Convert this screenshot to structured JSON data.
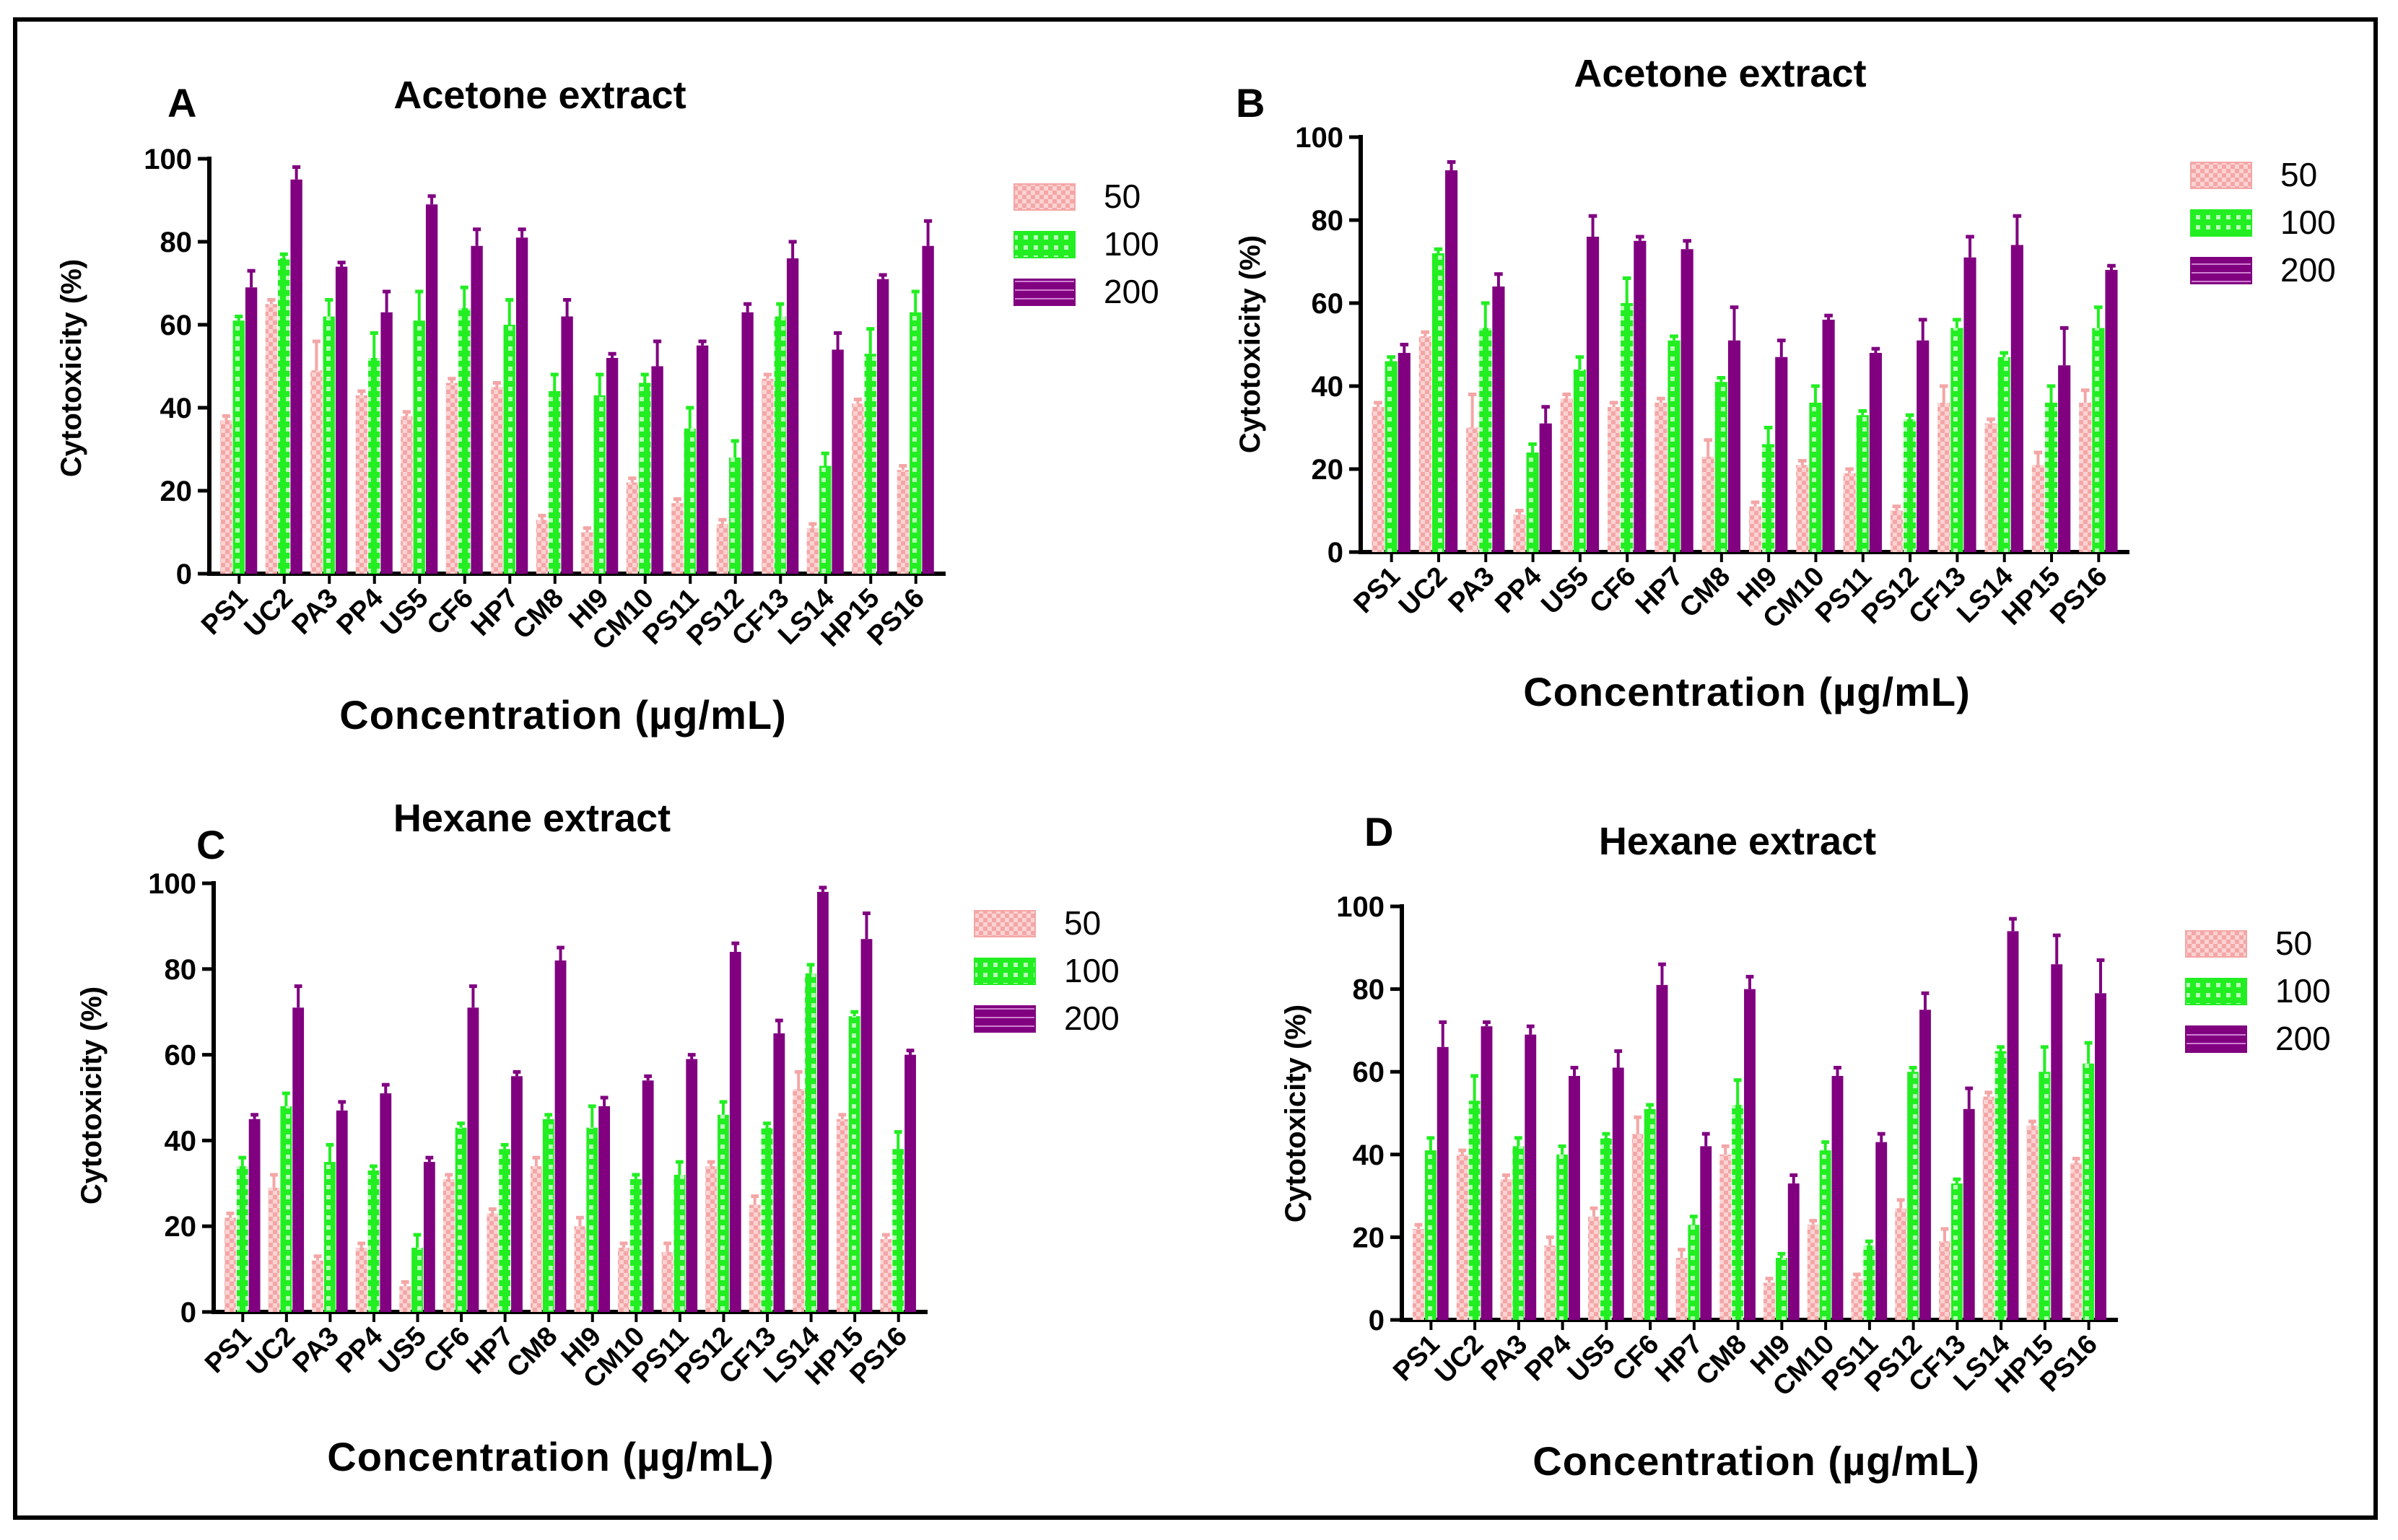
{
  "colors": {
    "c50": "#f4a6a6",
    "c50_hi": "#fbd3d3",
    "c100": "#22ee22",
    "c100_hi": "#b8ffb8",
    "c200": "#800080",
    "c200_hi": "#d080d0"
  },
  "chart_data": [
    {
      "panel": "A",
      "type": "bar",
      "title": "Acetone extract",
      "xlabel": "Concentration (µg/mL)",
      "ylabel": "Cytotoxicity (%)",
      "ylim": [
        0,
        100
      ],
      "yticks": [
        0,
        20,
        40,
        60,
        80,
        100
      ],
      "legend_position": "top-right",
      "categories": [
        "PS1",
        "UC2",
        "PA3",
        "PP4",
        "US5",
        "CF6",
        "HP7",
        "CM8",
        "HI9",
        "CM10",
        "PS11",
        "PS12",
        "CF13",
        "LS14",
        "HP15",
        "PS16"
      ],
      "series": [
        {
          "name": "50",
          "values": [
            37,
            65,
            49,
            43,
            38,
            46,
            45,
            13,
            10,
            22,
            17,
            12,
            47,
            11,
            41,
            25
          ],
          "errors": [
            1,
            1,
            7,
            1,
            1,
            1,
            1,
            1,
            1,
            1,
            1,
            1,
            1,
            1,
            1,
            1
          ]
        },
        {
          "name": "100",
          "values": [
            61,
            76,
            62,
            52,
            61,
            64,
            60,
            44,
            43,
            46,
            35,
            28,
            62,
            26,
            53,
            63
          ],
          "errors": [
            1,
            1,
            4,
            6,
            7,
            5,
            6,
            4,
            5,
            2,
            5,
            4,
            3,
            3,
            6,
            5
          ]
        },
        {
          "name": "200",
          "values": [
            69,
            95,
            74,
            63,
            89,
            79,
            81,
            62,
            52,
            50,
            55,
            63,
            76,
            54,
            71,
            79
          ],
          "errors": [
            4,
            3,
            1,
            5,
            2,
            4,
            2,
            4,
            1,
            6,
            1,
            2,
            4,
            4,
            1,
            6
          ]
        }
      ]
    },
    {
      "panel": "B",
      "type": "bar",
      "title": "Acetone extract",
      "xlabel": "Concentration (µg/mL)",
      "ylabel": "Cytotoxicity (%)",
      "ylim": [
        0,
        100
      ],
      "yticks": [
        0,
        20,
        40,
        60,
        80,
        100
      ],
      "legend_position": "top-right",
      "categories": [
        "PS1",
        "UC2",
        "PA3",
        "PP4",
        "US5",
        "CF6",
        "HP7",
        "CM8",
        "HI9",
        "CM10",
        "PS11",
        "PS12",
        "CF13",
        "LS14",
        "HP15",
        "PS16"
      ],
      "series": [
        {
          "name": "50",
          "values": [
            35,
            52,
            30,
            9,
            37,
            35,
            36,
            23,
            11,
            21,
            19,
            10,
            36,
            31,
            21,
            36
          ],
          "errors": [
            1,
            1,
            8,
            1,
            1,
            1,
            1,
            4,
            1,
            1,
            1,
            1,
            4,
            1,
            3,
            3
          ]
        },
        {
          "name": "100",
          "values": [
            46,
            72,
            54,
            24,
            44,
            60,
            51,
            41,
            26,
            36,
            33,
            32,
            54,
            47,
            36,
            54
          ],
          "errors": [
            1,
            1,
            6,
            2,
            3,
            6,
            1,
            1,
            4,
            4,
            1,
            1,
            2,
            1,
            4,
            5
          ]
        },
        {
          "name": "200",
          "values": [
            48,
            92,
            64,
            31,
            76,
            75,
            73,
            51,
            47,
            56,
            48,
            51,
            71,
            74,
            45,
            68
          ],
          "errors": [
            2,
            2,
            3,
            4,
            5,
            1,
            2,
            8,
            4,
            1,
            1,
            5,
            5,
            7,
            9,
            1
          ]
        }
      ]
    },
    {
      "panel": "C",
      "type": "bar",
      "title": "Hexane extract",
      "xlabel": "Concentration (µg/mL)",
      "ylabel": "Cytotoxicity (%)",
      "ylim": [
        0,
        100
      ],
      "yticks": [
        0,
        20,
        40,
        60,
        80,
        100
      ],
      "legend_position": "top-right",
      "categories": [
        "PS1",
        "UC2",
        "PA3",
        "PP4",
        "US5",
        "CF6",
        "HP7",
        "CM8",
        "HI9",
        "CM10",
        "PS11",
        "PS12",
        "CF13",
        "LS14",
        "HP15",
        "PS16"
      ],
      "series": [
        {
          "name": "50",
          "values": [
            22,
            29,
            12,
            15,
            6,
            31,
            23,
            34,
            20,
            15,
            14,
            34,
            25,
            52,
            45,
            17
          ],
          "errors": [
            1,
            3,
            1,
            1,
            1,
            1,
            1,
            2,
            2,
            1,
            2,
            1,
            2,
            4,
            1,
            1
          ]
        },
        {
          "name": "100",
          "values": [
            34,
            48,
            35,
            33,
            15,
            43,
            38,
            45,
            43,
            31,
            32,
            46,
            43,
            79,
            69,
            38
          ],
          "errors": [
            2,
            3,
            4,
            1,
            3,
            1,
            1,
            1,
            5,
            1,
            3,
            3,
            1,
            2,
            1,
            4
          ]
        },
        {
          "name": "200",
          "values": [
            45,
            71,
            47,
            51,
            35,
            71,
            55,
            82,
            48,
            54,
            59,
            84,
            65,
            98,
            87,
            60
          ],
          "errors": [
            1,
            5,
            2,
            2,
            1,
            5,
            1,
            3,
            2,
            1,
            1,
            2,
            3,
            1,
            6,
            1
          ]
        }
      ]
    },
    {
      "panel": "D",
      "type": "bar",
      "title": "Hexane extract",
      "xlabel": "Concentration (µg/mL)",
      "ylabel": "Cytotoxicity (%)",
      "ylim": [
        0,
        100
      ],
      "yticks": [
        0,
        20,
        40,
        60,
        80,
        100
      ],
      "legend_position": "top-right",
      "categories": [
        "PS1",
        "UC2",
        "PA3",
        "PP4",
        "US5",
        "CF6",
        "HP7",
        "CM8",
        "HI9",
        "CM10",
        "PS11",
        "PS12",
        "CF13",
        "LS14",
        "HP15",
        "PS16"
      ],
      "series": [
        {
          "name": "50",
          "values": [
            22,
            40,
            34,
            18,
            25,
            45,
            15,
            40,
            9,
            23,
            10,
            27,
            19,
            54,
            47,
            38
          ],
          "errors": [
            1,
            1,
            1,
            2,
            2,
            4,
            2,
            2,
            1,
            1,
            1,
            2,
            3,
            1,
            1,
            1
          ]
        },
        {
          "name": "100",
          "values": [
            41,
            53,
            42,
            40,
            44,
            51,
            23,
            52,
            15,
            41,
            18,
            60,
            33,
            65,
            60,
            62
          ],
          "errors": [
            3,
            6,
            2,
            2,
            1,
            1,
            2,
            6,
            1,
            2,
            1,
            1,
            1,
            1,
            6,
            5
          ]
        },
        {
          "name": "200",
          "values": [
            66,
            71,
            69,
            59,
            61,
            81,
            42,
            80,
            33,
            59,
            43,
            75,
            51,
            94,
            86,
            79
          ],
          "errors": [
            6,
            1,
            2,
            2,
            4,
            5,
            3,
            3,
            2,
            2,
            2,
            4,
            5,
            3,
            7,
            8
          ]
        }
      ]
    }
  ]
}
